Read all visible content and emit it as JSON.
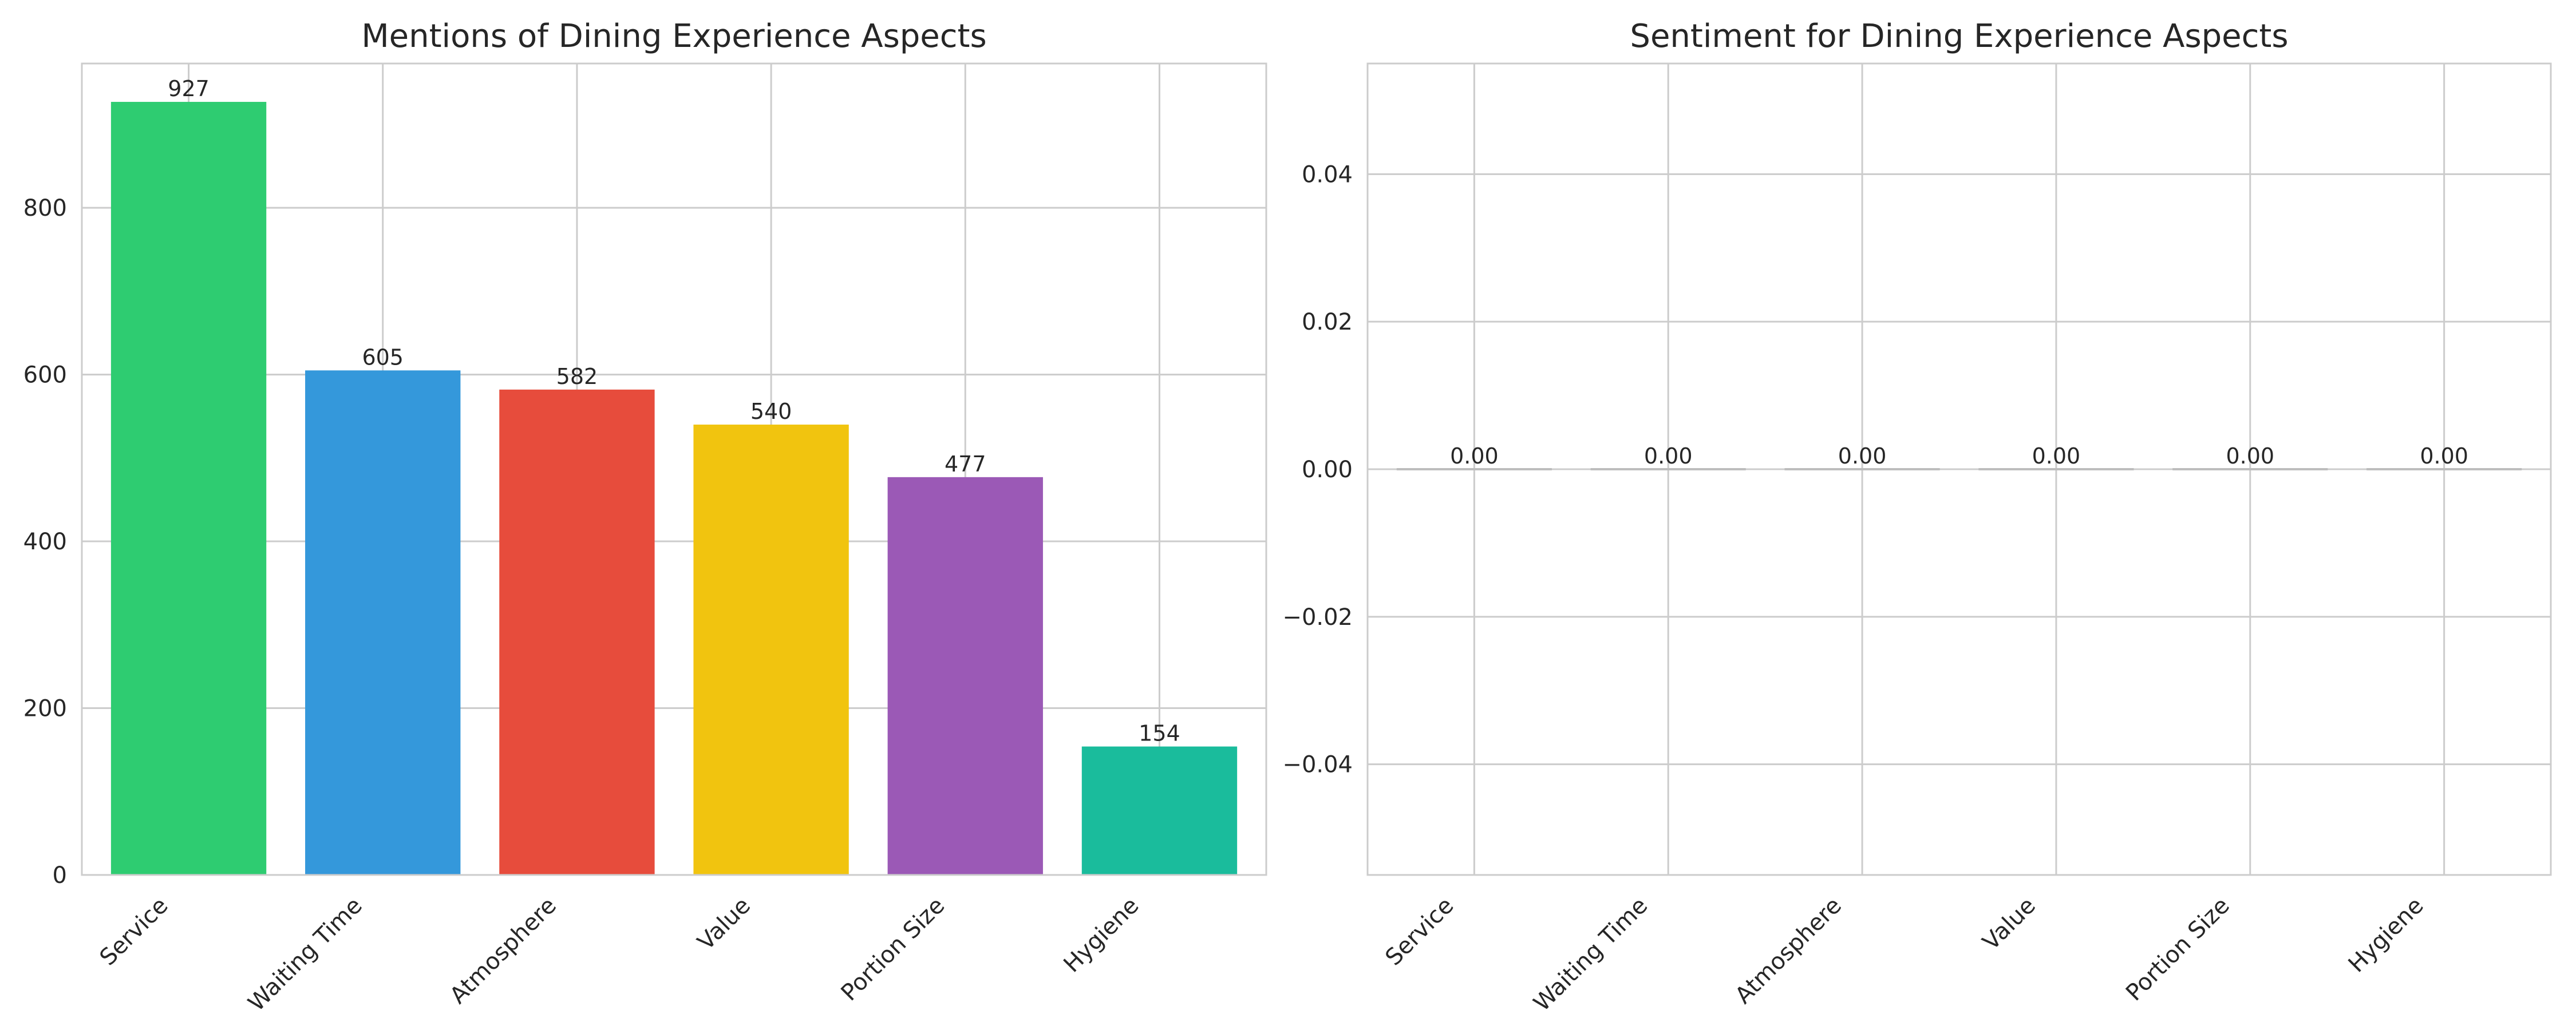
{
  "chart_data": [
    {
      "type": "bar",
      "title": "Mentions of Dining Experience Aspects",
      "xlabel": "",
      "ylabel": "",
      "categories": [
        "Service",
        "Waiting Time",
        "Atmosphere",
        "Value",
        "Portion Size",
        "Hygiene"
      ],
      "values": [
        927,
        605,
        582,
        540,
        477,
        154
      ],
      "value_labels": [
        "927",
        "605",
        "582",
        "540",
        "477",
        "154"
      ],
      "colors": [
        "#2ecc71",
        "#3498db",
        "#e74c3c",
        "#f1c40f",
        "#9b59b6",
        "#1abc9c"
      ],
      "ylim": [
        0,
        973
      ],
      "yticks": [
        0,
        200,
        400,
        600,
        800
      ],
      "ytick_labels": [
        "0",
        "200",
        "400",
        "600",
        "800"
      ],
      "grid": true,
      "xtick_rotation": 45
    },
    {
      "type": "bar",
      "title": "Sentiment for Dining Experience Aspects",
      "xlabel": "",
      "ylabel": "",
      "categories": [
        "Service",
        "Waiting Time",
        "Atmosphere",
        "Value",
        "Portion Size",
        "Hygiene"
      ],
      "values": [
        0,
        0,
        0,
        0,
        0,
        0
      ],
      "value_labels": [
        "0.00",
        "0.00",
        "0.00",
        "0.00",
        "0.00",
        "0.00"
      ],
      "colors": [
        "#bdbdbd",
        "#bdbdbd",
        "#bdbdbd",
        "#bdbdbd",
        "#bdbdbd",
        "#bdbdbd"
      ],
      "ylim": [
        -0.055,
        0.055
      ],
      "yticks": [
        -0.04,
        -0.02,
        0.0,
        0.02,
        0.04
      ],
      "ytick_labels": [
        "−0.04",
        "−0.02",
        "0.00",
        "0.02",
        "0.04"
      ],
      "grid": true,
      "xtick_rotation": 45
    }
  ]
}
